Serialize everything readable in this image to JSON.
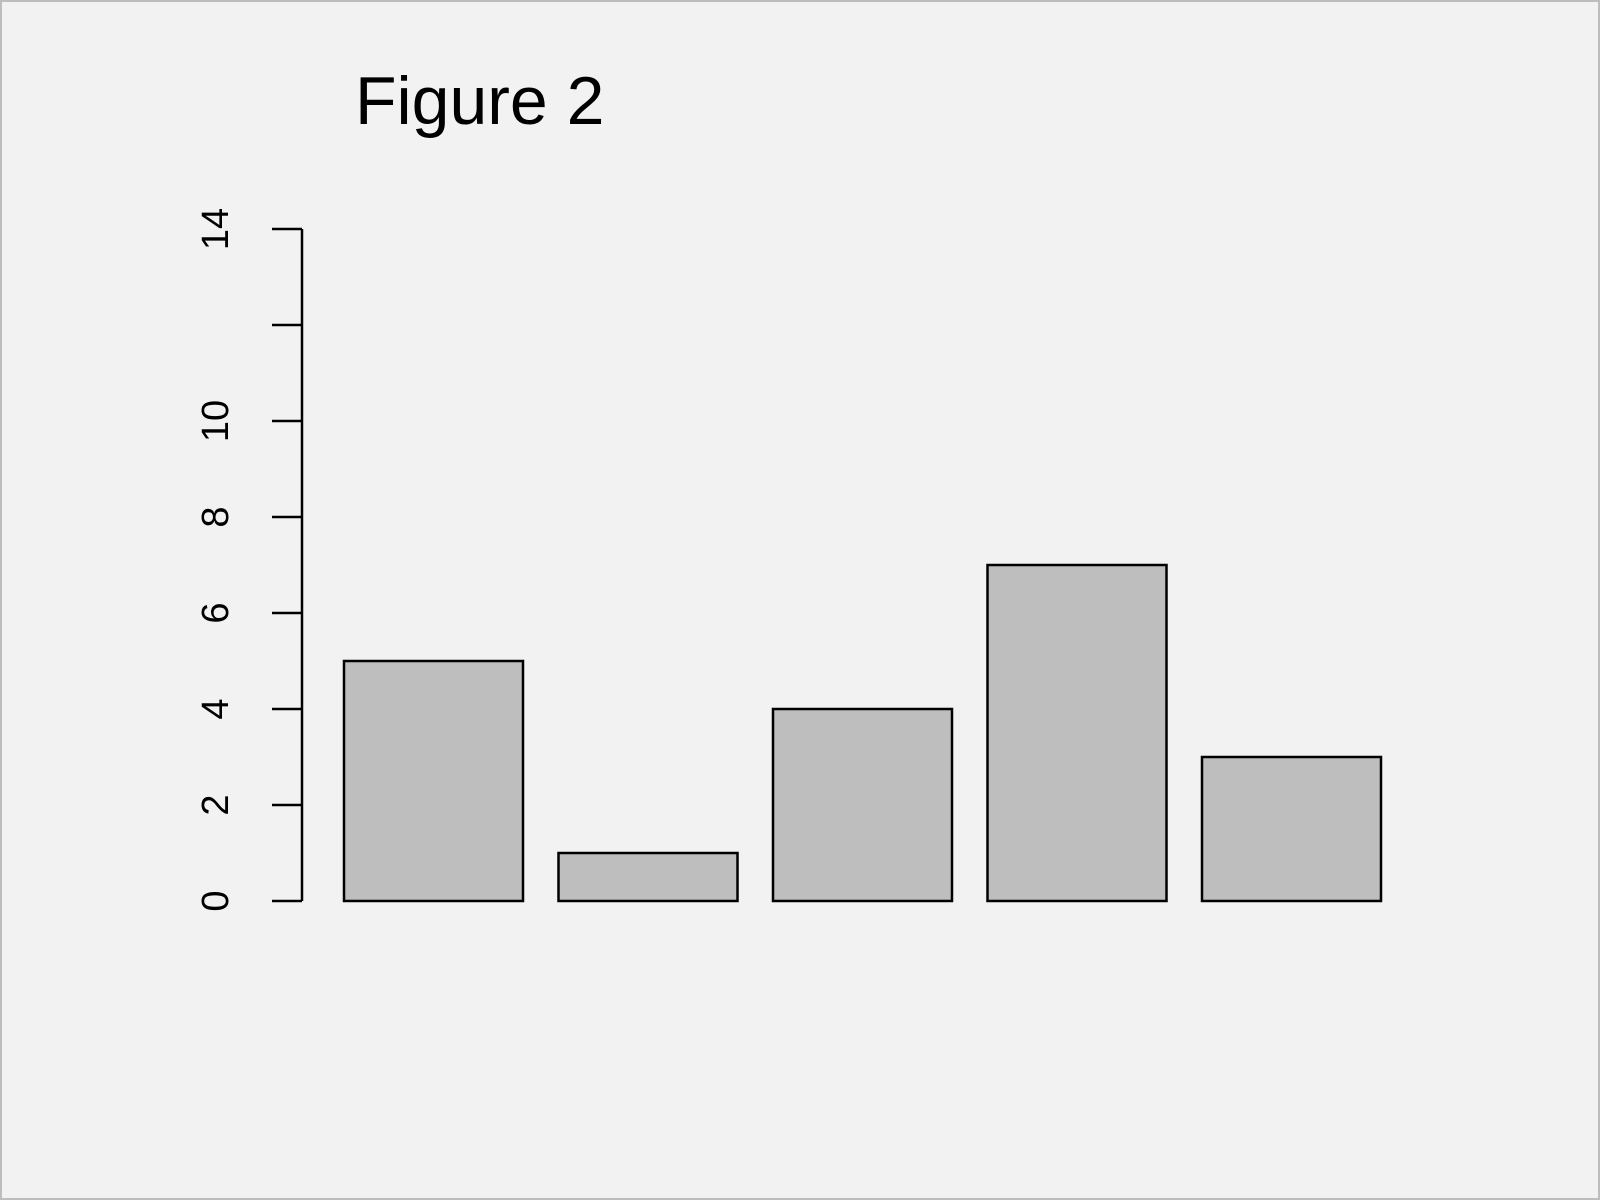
{
  "chart_data": {
    "type": "bar",
    "title": "Figure 2",
    "xlabel": "",
    "ylabel": "",
    "values": [
      5,
      1,
      4,
      7,
      3
    ],
    "ylim": [
      0,
      14
    ],
    "yticks": [
      0,
      2,
      4,
      6,
      8,
      10,
      12,
      14
    ],
    "ytick_labels": [
      "0",
      "2",
      "4",
      "6",
      "8",
      "10",
      "",
      "14"
    ],
    "bar_color": "#bebebe",
    "background_color": "#f2f2f2",
    "grid": false,
    "legend": "none"
  }
}
